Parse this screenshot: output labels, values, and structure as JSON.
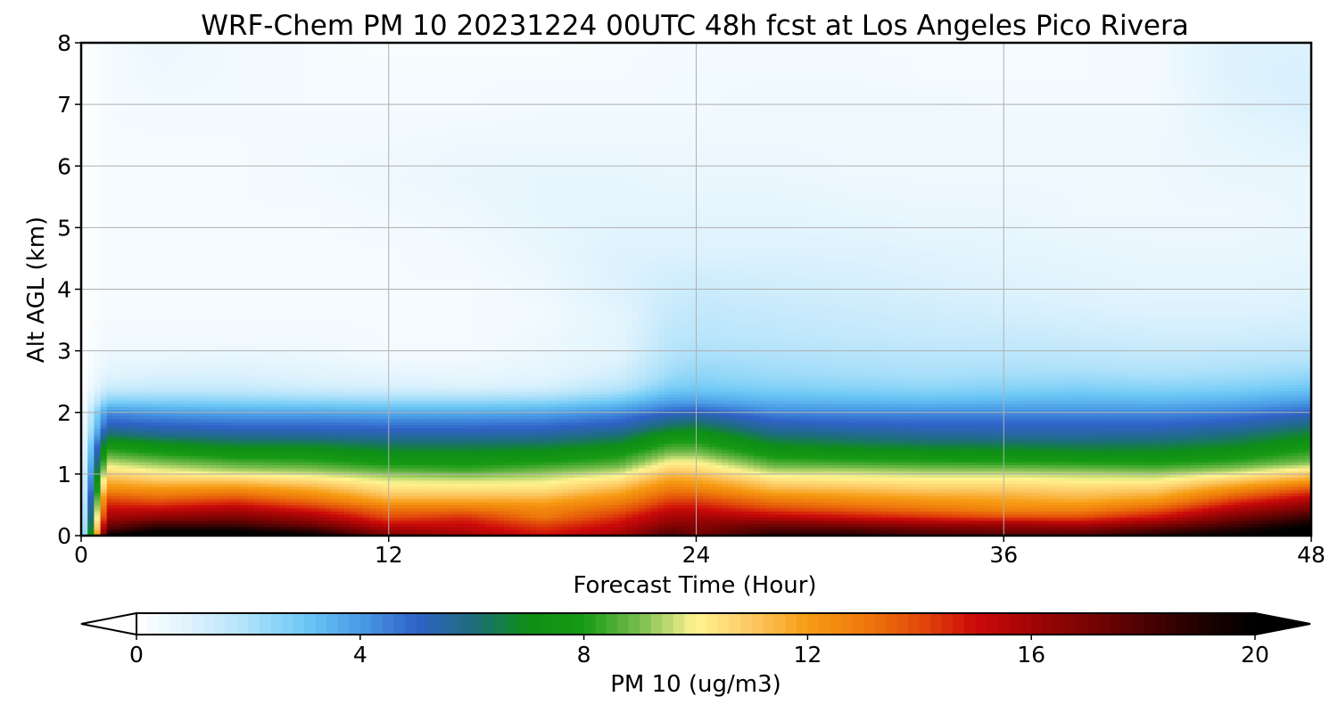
{
  "chart_data": {
    "type": "heatmap",
    "subtype": "time-height filled contour",
    "title": "WRF-Chem PM 10  20231224 00UTC 48h fcst at Los Angeles Pico Rivera",
    "xlabel": "Forecast Time (Hour)",
    "ylabel": "Alt AGL (km)",
    "xlim": [
      0,
      48
    ],
    "ylim": [
      0,
      8
    ],
    "x_ticks": [
      "0",
      "12",
      "24",
      "36",
      "48"
    ],
    "y_ticks": [
      "0",
      "1",
      "2",
      "3",
      "4",
      "5",
      "6",
      "7",
      "8"
    ],
    "grid": true,
    "colorbar": {
      "label": "PM 10  (ug/m3)",
      "ticks": [
        "0",
        "4",
        "8",
        "12",
        "16",
        "20"
      ],
      "range": [
        0,
        20
      ],
      "extend": "both",
      "orientation": "horizontal"
    },
    "x_hours": [
      0,
      1,
      3,
      6,
      9,
      12,
      15,
      18,
      21,
      23,
      24,
      27,
      30,
      33,
      36,
      39,
      42,
      45,
      48
    ],
    "altitudes_km": [
      0,
      0.1,
      0.2,
      0.3,
      0.45,
      0.6,
      0.75,
      0.9,
      1.05,
      1.2,
      1.35,
      1.5,
      1.65,
      1.8,
      2.0,
      2.2,
      2.4,
      2.6,
      2.9,
      3.2,
      3.6,
      4.0,
      4.6,
      5.2,
      5.8,
      6.4,
      7.0,
      7.5,
      8.0
    ],
    "pm10_ugm3": [
      [
        0,
        20,
        21,
        21,
        20,
        17,
        16,
        15,
        16,
        18,
        17,
        19,
        19,
        18,
        18,
        18,
        19,
        20,
        21
      ],
      [
        0,
        18,
        19.5,
        19.5,
        18.5,
        16,
        15.5,
        14.5,
        15.5,
        17.5,
        17,
        18,
        18,
        17.5,
        17,
        17,
        18,
        19,
        20.5
      ],
      [
        0,
        17,
        18,
        18,
        17,
        15,
        15,
        14,
        15,
        16.5,
        16.5,
        17,
        16.5,
        16,
        16,
        15.5,
        16.5,
        18,
        19.5
      ],
      [
        0,
        16,
        16.5,
        17,
        16,
        14,
        14.5,
        13,
        14.5,
        16,
        16,
        15.5,
        15,
        14.5,
        14,
        14,
        15,
        17,
        18.5
      ],
      [
        0,
        15,
        15,
        15.5,
        14.5,
        13,
        13,
        12.5,
        13.5,
        15,
        15,
        14,
        13.5,
        13,
        12.5,
        12.5,
        13.5,
        15.5,
        17
      ],
      [
        0,
        14,
        13.5,
        14,
        13,
        11.5,
        11.5,
        11.5,
        12.5,
        14,
        14,
        12.8,
        12.3,
        12,
        11.8,
        11.5,
        12,
        14,
        15.5
      ],
      [
        0,
        12.5,
        12.3,
        12.5,
        11.8,
        10.5,
        10.5,
        10.5,
        11.5,
        13,
        12.8,
        11.5,
        11.3,
        11,
        11,
        10.8,
        11,
        12.5,
        14
      ],
      [
        0,
        11.5,
        11,
        11,
        10.5,
        9.8,
        9.7,
        9.8,
        10.5,
        12,
        11.8,
        10.5,
        10.3,
        10.2,
        10.2,
        10,
        10,
        11,
        12
      ],
      [
        0,
        10.5,
        10,
        9.5,
        9.3,
        8.8,
        8.5,
        9,
        9.5,
        11,
        10.8,
        9.5,
        9.5,
        9.3,
        9.3,
        9.2,
        9,
        9.5,
        10.5
      ],
      [
        0,
        9.5,
        9,
        8.5,
        8.3,
        7.8,
        7.8,
        8,
        8.5,
        10,
        10,
        8.5,
        8.3,
        8.2,
        8.1,
        8,
        7.9,
        8.3,
        9
      ],
      [
        0,
        8.5,
        8,
        7.5,
        7.5,
        7,
        7,
        7.2,
        7.8,
        9,
        9,
        7.6,
        7.4,
        7.3,
        7.2,
        7,
        7,
        7.5,
        8.3
      ],
      [
        0,
        7.5,
        7,
        6.5,
        6.5,
        6.2,
        6.2,
        6.3,
        6.8,
        8.2,
        8.2,
        6.8,
        6.5,
        6.3,
        6.3,
        6.2,
        6.3,
        6.6,
        7.5
      ],
      [
        0,
        6.2,
        5.8,
        5.6,
        5.5,
        5.4,
        5.4,
        5.5,
        6,
        7.3,
        7.4,
        6,
        5.8,
        5.6,
        5.5,
        5.5,
        5.6,
        6,
        6.8
      ],
      [
        0,
        5.2,
        5,
        4.8,
        4.8,
        4.7,
        4.7,
        4.8,
        5.2,
        6.2,
        6.4,
        5.3,
        5.1,
        5,
        5,
        5,
        5,
        5.3,
        6
      ],
      [
        0,
        4.3,
        4,
        3.8,
        3.8,
        3.7,
        3.7,
        3.8,
        4.3,
        5,
        5.2,
        4.4,
        4.3,
        4.3,
        4.3,
        4.3,
        4.3,
        4.5,
        5
      ],
      [
        0,
        2.6,
        2.6,
        2.5,
        2.4,
        2.3,
        2.3,
        2.4,
        2.9,
        3.8,
        3.8,
        3.4,
        3.3,
        3.2,
        3.3,
        3.4,
        3.3,
        3.5,
        3.9
      ],
      [
        0,
        1.4,
        1.5,
        1.5,
        1.3,
        1.2,
        1.1,
        1.2,
        1.8,
        2.8,
        2.9,
        2.7,
        2.6,
        2.5,
        2.6,
        2.7,
        2.6,
        2.7,
        3
      ],
      [
        0,
        0.9,
        1.1,
        1.1,
        0.9,
        0.8,
        0.7,
        0.8,
        1.3,
        2.3,
        2.5,
        2.3,
        2.2,
        2.1,
        2.2,
        2.2,
        2.1,
        2.2,
        2.4
      ],
      [
        0,
        0.6,
        0.6,
        0.7,
        0.6,
        0.4,
        0.4,
        0.6,
        0.9,
        1.9,
        2.1,
        2,
        1.9,
        1.8,
        1.8,
        1.7,
        1.6,
        1.7,
        1.8
      ],
      [
        0,
        0.4,
        0.4,
        0.4,
        0.4,
        0.3,
        0.3,
        0.5,
        0.8,
        1.7,
        1.8,
        1.7,
        1.6,
        1.5,
        1.5,
        1.4,
        1.3,
        1.3,
        1.4
      ],
      [
        0,
        0.3,
        0.3,
        0.3,
        0.3,
        0.3,
        0.3,
        0.4,
        0.8,
        1.5,
        1.6,
        1.5,
        1.4,
        1.3,
        1.2,
        1.1,
        1,
        1,
        1.1
      ],
      [
        0,
        0.3,
        0.3,
        0.3,
        0.3,
        0.3,
        0.3,
        0.5,
        1,
        1.3,
        1.4,
        1.3,
        1.2,
        1.1,
        1,
        0.9,
        0.8,
        0.8,
        0.9
      ],
      [
        0,
        0.3,
        0.3,
        0.3,
        0.3,
        0.3,
        0.4,
        0.6,
        1,
        1,
        1,
        1,
        1,
        0.9,
        0.8,
        0.7,
        0.6,
        0.6,
        0.7
      ],
      [
        0,
        0.3,
        0.3,
        0.3,
        0.3,
        0.4,
        0.5,
        0.7,
        0.8,
        0.8,
        0.8,
        0.8,
        0.7,
        0.6,
        0.6,
        0.5,
        0.5,
        0.5,
        0.6
      ],
      [
        0,
        0.3,
        0.3,
        0.3,
        0.4,
        0.5,
        0.6,
        0.7,
        0.7,
        0.6,
        0.6,
        0.6,
        0.5,
        0.5,
        0.5,
        0.5,
        0.5,
        0.6,
        0.6
      ],
      [
        0,
        0.3,
        0.3,
        0.3,
        0.4,
        0.4,
        0.5,
        0.5,
        0.5,
        0.5,
        0.5,
        0.5,
        0.5,
        0.5,
        0.5,
        0.5,
        0.5,
        0.7,
        0.9
      ],
      [
        0,
        0.3,
        0.4,
        0.4,
        0.3,
        0.3,
        0.3,
        0.4,
        0.4,
        0.4,
        0.4,
        0.5,
        0.5,
        0.5,
        0.4,
        0.4,
        0.4,
        0.9,
        1.1
      ],
      [
        0,
        0.3,
        0.5,
        0.4,
        0.3,
        0.3,
        0.3,
        0.3,
        0.3,
        0.4,
        0.4,
        0.4,
        0.4,
        0.3,
        0.3,
        0.3,
        0.4,
        1,
        1.1
      ],
      [
        0,
        0.3,
        0.6,
        0.4,
        0.3,
        0.2,
        0.2,
        0.2,
        0.3,
        0.3,
        0.3,
        0.3,
        0.3,
        0.3,
        0.3,
        0.3,
        0.4,
        1,
        1
      ]
    ],
    "colormap": [
      [
        0,
        "#ffffff"
      ],
      [
        1,
        "#ddf2fd"
      ],
      [
        2,
        "#aee1fa"
      ],
      [
        3,
        "#6cc8f5"
      ],
      [
        4,
        "#4a9ce6"
      ],
      [
        5,
        "#2f62c7"
      ],
      [
        6,
        "#1e6d7e"
      ],
      [
        7,
        "#0d8e16"
      ],
      [
        8,
        "#179a14"
      ],
      [
        9,
        "#7abd4f"
      ],
      [
        10,
        "#fff490"
      ],
      [
        11,
        "#fcc864"
      ],
      [
        12,
        "#f79b12"
      ],
      [
        13,
        "#ee7a0c"
      ],
      [
        14,
        "#e24a0a"
      ],
      [
        15,
        "#cc0a0a"
      ],
      [
        16,
        "#a10505"
      ],
      [
        17,
        "#7a0303"
      ],
      [
        18,
        "#4e0202"
      ],
      [
        19,
        "#200101"
      ],
      [
        20,
        "#000000"
      ]
    ]
  }
}
